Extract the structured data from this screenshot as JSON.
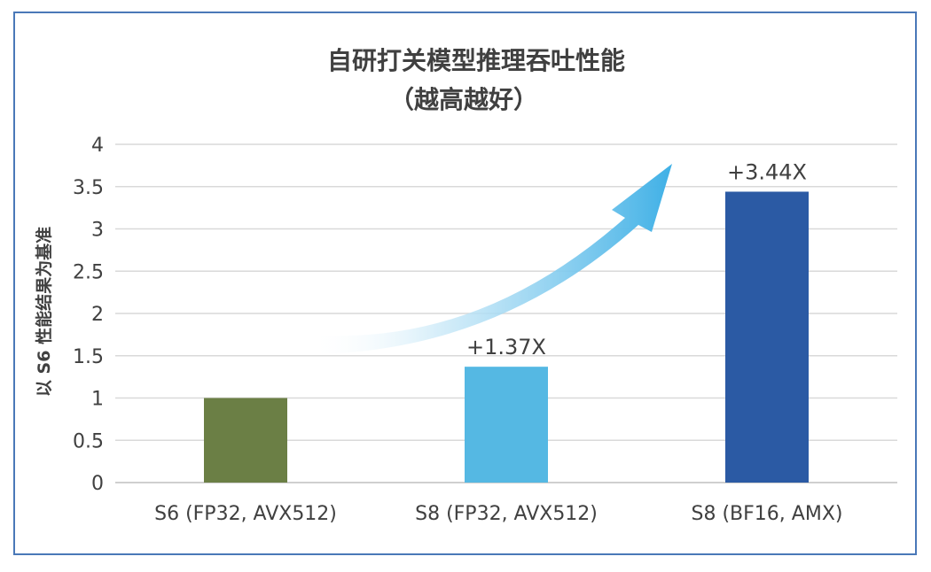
{
  "chart_data": {
    "type": "bar",
    "title_lines": [
      "自研打关模型推理吞吐性能",
      "（越高越好）"
    ],
    "ylabel": "以 S6 性能结果为基准",
    "categories": [
      "S6 (FP32, AVX512)",
      "S8 (FP32, AVX512)",
      "S8 (BF16, AMX)"
    ],
    "values": [
      1,
      1.37,
      3.44
    ],
    "data_labels": [
      "",
      "+1.37X",
      "+3.44X"
    ],
    "colors": [
      "#6b7f45",
      "#55b8e3",
      "#2b5aa4"
    ],
    "ylim": [
      0,
      4
    ],
    "yticks": [
      0,
      0.5,
      1,
      1.5,
      2,
      2.5,
      3,
      3.5,
      4
    ],
    "ytick_labels": [
      "0",
      "0.5",
      "1",
      "1.5",
      "2",
      "2.5",
      "3",
      "3.5",
      "4"
    ],
    "grid": true,
    "annotation": "upward arrow from S8 (FP32, AVX512) toward S8 (BF16, AMX)"
  }
}
